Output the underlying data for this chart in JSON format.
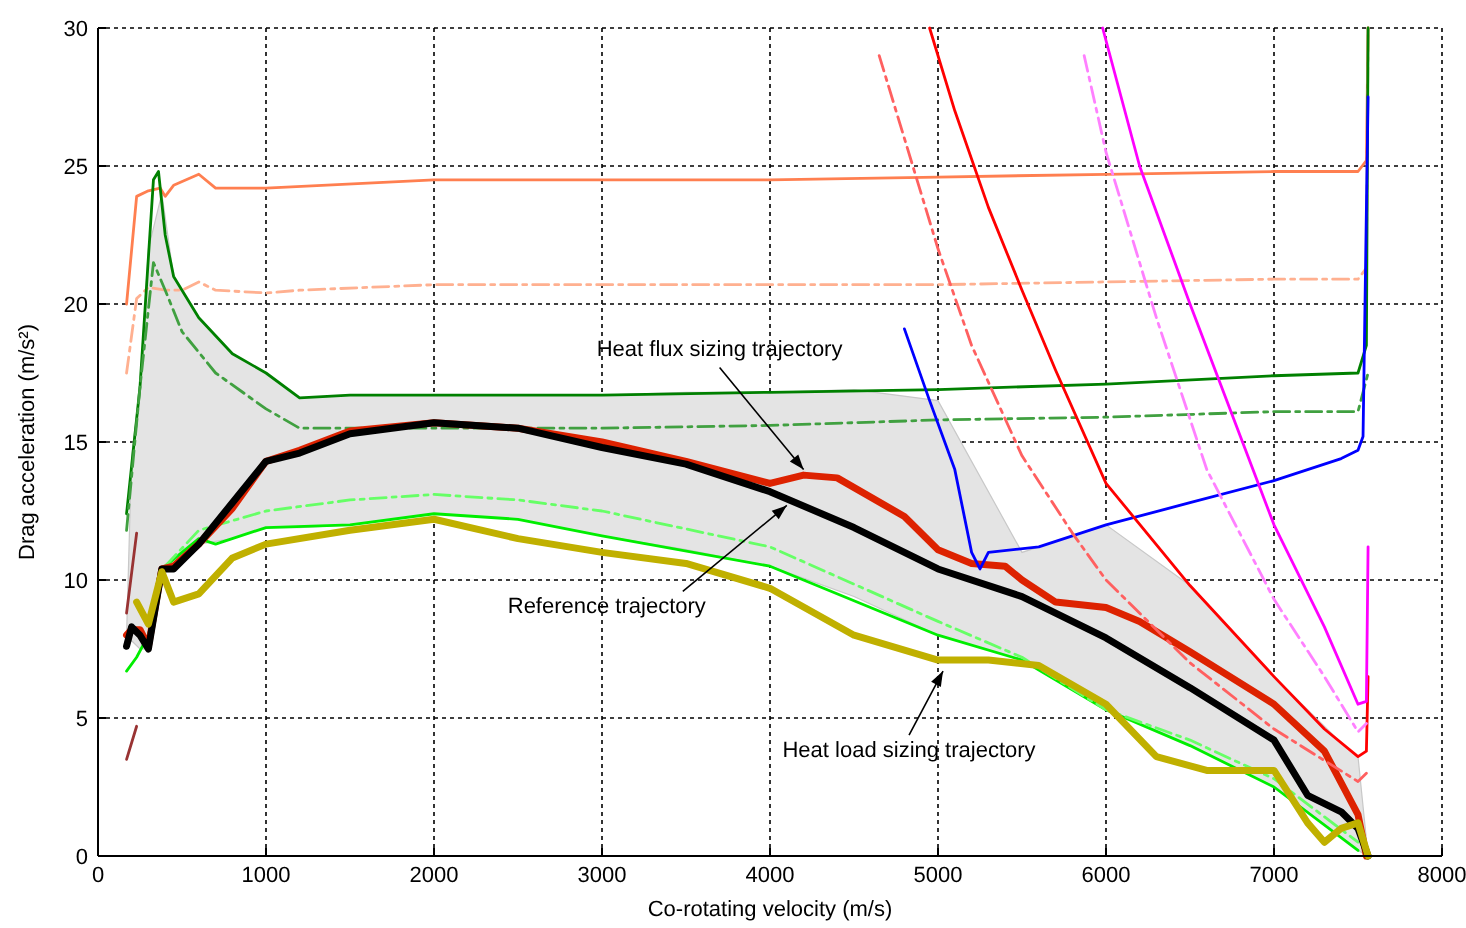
{
  "chart_data": {
    "type": "line",
    "xlabel": "Co-rotating velocity (m/s)",
    "ylabel": "Drag acceleration (m/s²)",
    "xlim": [
      0,
      8000
    ],
    "xticks": [
      0,
      1000,
      2000,
      3000,
      4000,
      5000,
      6000,
      7000,
      8000
    ],
    "ylim": [
      0,
      30
    ],
    "yticks": [
      0,
      5,
      10,
      15,
      20,
      25,
      30
    ],
    "grid": true,
    "marker": "none",
    "annotations": [
      {
        "text": "Heat flux sizing trajectory",
        "x": 4200,
        "y": 14
      },
      {
        "text": "Reference trajectory",
        "x": 4100,
        "y": 12.7
      },
      {
        "text": "Heat load sizing trajectory",
        "x": 5030,
        "y": 6.7
      }
    ],
    "series": [
      {
        "color": "#ff7f50",
        "line_style": "solid",
        "x": [
          170,
          230,
          300,
          370,
          400,
          450,
          600,
          700,
          1000,
          2000,
          3000,
          4000,
          5000,
          6000,
          7000,
          7500,
          7550,
          7560
        ],
        "values": [
          20,
          23.9,
          24.1,
          24.2,
          23.9,
          24.3,
          24.7,
          24.2,
          24.2,
          24.5,
          24.5,
          24.5,
          24.6,
          24.7,
          24.8,
          24.8,
          25.2,
          30
        ]
      },
      {
        "color": "#ffb090",
        "line_style": "dashed",
        "x": [
          170,
          230,
          300,
          400,
          500,
          600,
          700,
          1000,
          1200,
          2000,
          3000,
          4000,
          5000,
          6000,
          7000,
          7500,
          7550,
          7560
        ],
        "values": [
          17.5,
          20.2,
          20.6,
          20.5,
          20.5,
          20.8,
          20.5,
          20.4,
          20.5,
          20.7,
          20.7,
          20.7,
          20.7,
          20.8,
          20.9,
          20.9,
          21.3,
          30
        ]
      },
      {
        "color": "#008000",
        "line_style": "solid",
        "x": [
          170,
          250,
          330,
          360,
          400,
          450,
          600,
          800,
          1000,
          1200,
          1500,
          2000,
          3000,
          4000,
          5000,
          6000,
          7000,
          7500,
          7550,
          7560
        ],
        "values": [
          12.4,
          17,
          24.5,
          24.8,
          22.5,
          21,
          19.5,
          18.2,
          17.5,
          16.6,
          16.7,
          16.7,
          16.7,
          16.8,
          16.9,
          17.1,
          17.4,
          17.5,
          18.5,
          30
        ]
      },
      {
        "color": "#40a040",
        "line_style": "dashed",
        "x": [
          170,
          250,
          330,
          400,
          500,
          700,
          1000,
          1200,
          2000,
          3000,
          4000,
          5000,
          6000,
          7000,
          7500,
          7560
        ],
        "values": [
          11.8,
          17,
          21.5,
          20.5,
          19,
          17.5,
          16.2,
          15.5,
          15.5,
          15.5,
          15.6,
          15.8,
          15.9,
          16.1,
          16.1,
          17.5
        ]
      },
      {
        "color": "#00ee00",
        "line_style": "solid",
        "x": [
          170,
          230,
          300,
          400,
          600,
          700,
          1000,
          1500,
          2000,
          2500,
          3000,
          4000,
          5000,
          5500,
          6000,
          6500,
          7000,
          7500
        ],
        "values": [
          6.7,
          7.2,
          8,
          10.5,
          11.5,
          11.3,
          11.9,
          12,
          12.4,
          12.2,
          11.6,
          10.5,
          8,
          7.1,
          5.3,
          4,
          2.5,
          0.2
        ]
      },
      {
        "color": "#66ff66",
        "line_style": "dashed",
        "x": [
          400,
          600,
          1000,
          1500,
          2000,
          2500,
          3000,
          4000,
          5000,
          5500,
          6000,
          6500,
          7000,
          7500
        ],
        "values": [
          10.5,
          11.8,
          12.5,
          12.9,
          13.1,
          12.9,
          12.5,
          11.2,
          8.5,
          7.2,
          5.3,
          4.2,
          2.8,
          0.5
        ]
      },
      {
        "color": "#dd2200",
        "line_style": "solid",
        "x": [
          170,
          200,
          250,
          300,
          380,
          450,
          600,
          800,
          1000,
          1200,
          1500,
          2000,
          2500,
          3000,
          3500,
          4000,
          4200,
          4400,
          4800,
          5000,
          5200,
          5400,
          5500,
          5700,
          6000,
          6200,
          6500,
          7000,
          7300,
          7500,
          7550
        ],
        "values": [
          8,
          8.2,
          8.2,
          7.6,
          10.4,
          10.5,
          11.3,
          12.6,
          14.3,
          14.7,
          15.4,
          15.7,
          15.5,
          15,
          14.3,
          13.5,
          13.8,
          13.7,
          12.3,
          11.1,
          10.6,
          10.5,
          10,
          9.2,
          9,
          8.5,
          7.4,
          5.5,
          3.8,
          1.5,
          0
        ]
      },
      {
        "color": "#000000",
        "line_style": "solid",
        "x": [
          170,
          200,
          250,
          300,
          380,
          450,
          600,
          800,
          1000,
          1200,
          1500,
          2000,
          2500,
          3000,
          3500,
          4000,
          4500,
          5000,
          5500,
          6000,
          6500,
          7000,
          7200,
          7400,
          7500,
          7560
        ],
        "values": [
          7.6,
          8.3,
          8,
          7.5,
          10.4,
          10.4,
          11.3,
          12.8,
          14.3,
          14.6,
          15.3,
          15.7,
          15.5,
          14.8,
          14.2,
          13.2,
          11.9,
          10.4,
          9.4,
          7.9,
          6.1,
          4.2,
          2.2,
          1.6,
          1,
          0
        ],
        "lower": [
          7.6,
          7.8,
          7.5,
          7.5,
          10.3,
          10.4,
          11.3,
          11.5,
          11.9,
          11.9,
          12,
          12.4,
          12.2,
          11.6,
          11.1,
          10.5,
          9.4,
          8,
          7.1,
          5.3,
          4,
          2.5,
          1.6,
          0.7,
          0.2,
          0
        ],
        "upper": [
          8,
          14.5,
          17,
          22,
          24,
          21,
          19.5,
          18.2,
          17.5,
          16.6,
          16.7,
          16.7,
          16.7,
          16.7,
          16.8,
          16.8,
          16.9,
          16.5,
          11,
          12,
          9.8,
          6.5,
          5.3,
          4.1,
          3.6,
          0
        ]
      },
      {
        "color": "#c0b000",
        "line_style": "solid",
        "x": [
          230,
          300,
          380,
          450,
          600,
          800,
          1000,
          1500,
          2000,
          2500,
          3000,
          3500,
          4000,
          4500,
          5000,
          5300,
          5600,
          6000,
          6300,
          6600,
          7000,
          7200,
          7300,
          7400,
          7500,
          7560
        ],
        "values": [
          9.2,
          8.4,
          10.3,
          9.2,
          9.5,
          10.8,
          11.3,
          11.8,
          12.2,
          11.5,
          11,
          10.6,
          9.7,
          8,
          7.1,
          7.1,
          6.9,
          5.5,
          3.6,
          3.1,
          3.1,
          1.2,
          0.5,
          1,
          1.2,
          0
        ]
      },
      {
        "color": "#0000ff",
        "line_style": "solid",
        "x": [
          4800,
          4950,
          5100,
          5200,
          5250,
          5300,
          5600,
          6000,
          6500,
          7000,
          7400,
          7500,
          7530,
          7560
        ],
        "values": [
          19.1,
          16.5,
          14,
          11,
          10.4,
          11,
          11.2,
          12,
          12.8,
          13.6,
          14.4,
          14.7,
          15.2,
          27.5
        ]
      },
      {
        "color": "#ff0000",
        "line_style": "solid",
        "x": [
          4950,
          5100,
          5300,
          5500,
          5700,
          6000,
          6500,
          7000,
          7300,
          7500,
          7550,
          7560
        ],
        "values": [
          30,
          27,
          23.5,
          20.5,
          17.6,
          13.5,
          9.8,
          6.5,
          4.6,
          3.6,
          3.8,
          6.5
        ]
      },
      {
        "color": "#ff6060",
        "line_style": "dashed",
        "x": [
          4650,
          4800,
          5000,
          5200,
          5500,
          5800,
          6000,
          6500,
          7000,
          7500,
          7550
        ],
        "values": [
          29,
          26,
          22,
          18.5,
          14.5,
          11.7,
          10,
          7,
          4.6,
          2.7,
          3
        ]
      },
      {
        "color": "#ff00ff",
        "line_style": "solid",
        "x": [
          5980,
          6200,
          6500,
          7000,
          7300,
          7500,
          7550,
          7560
        ],
        "values": [
          30,
          25,
          20,
          12,
          8.3,
          5.5,
          5.6,
          11.2
        ]
      },
      {
        "color": "#ff80ff",
        "line_style": "dashed",
        "x": [
          5870,
          6000,
          6300,
          6600,
          7000,
          7300,
          7500,
          7550
        ],
        "values": [
          29,
          25.5,
          19.5,
          14,
          9.3,
          6.5,
          4.5,
          4.8
        ]
      },
      {
        "color": "#993333",
        "line_style": "solid",
        "x": [
          170,
          230
        ],
        "values": [
          3.5,
          4.7
        ]
      },
      {
        "color": "#993333",
        "line_style": "solid",
        "x": [
          170,
          230
        ],
        "values": [
          8.8,
          11.7
        ]
      }
    ]
  }
}
